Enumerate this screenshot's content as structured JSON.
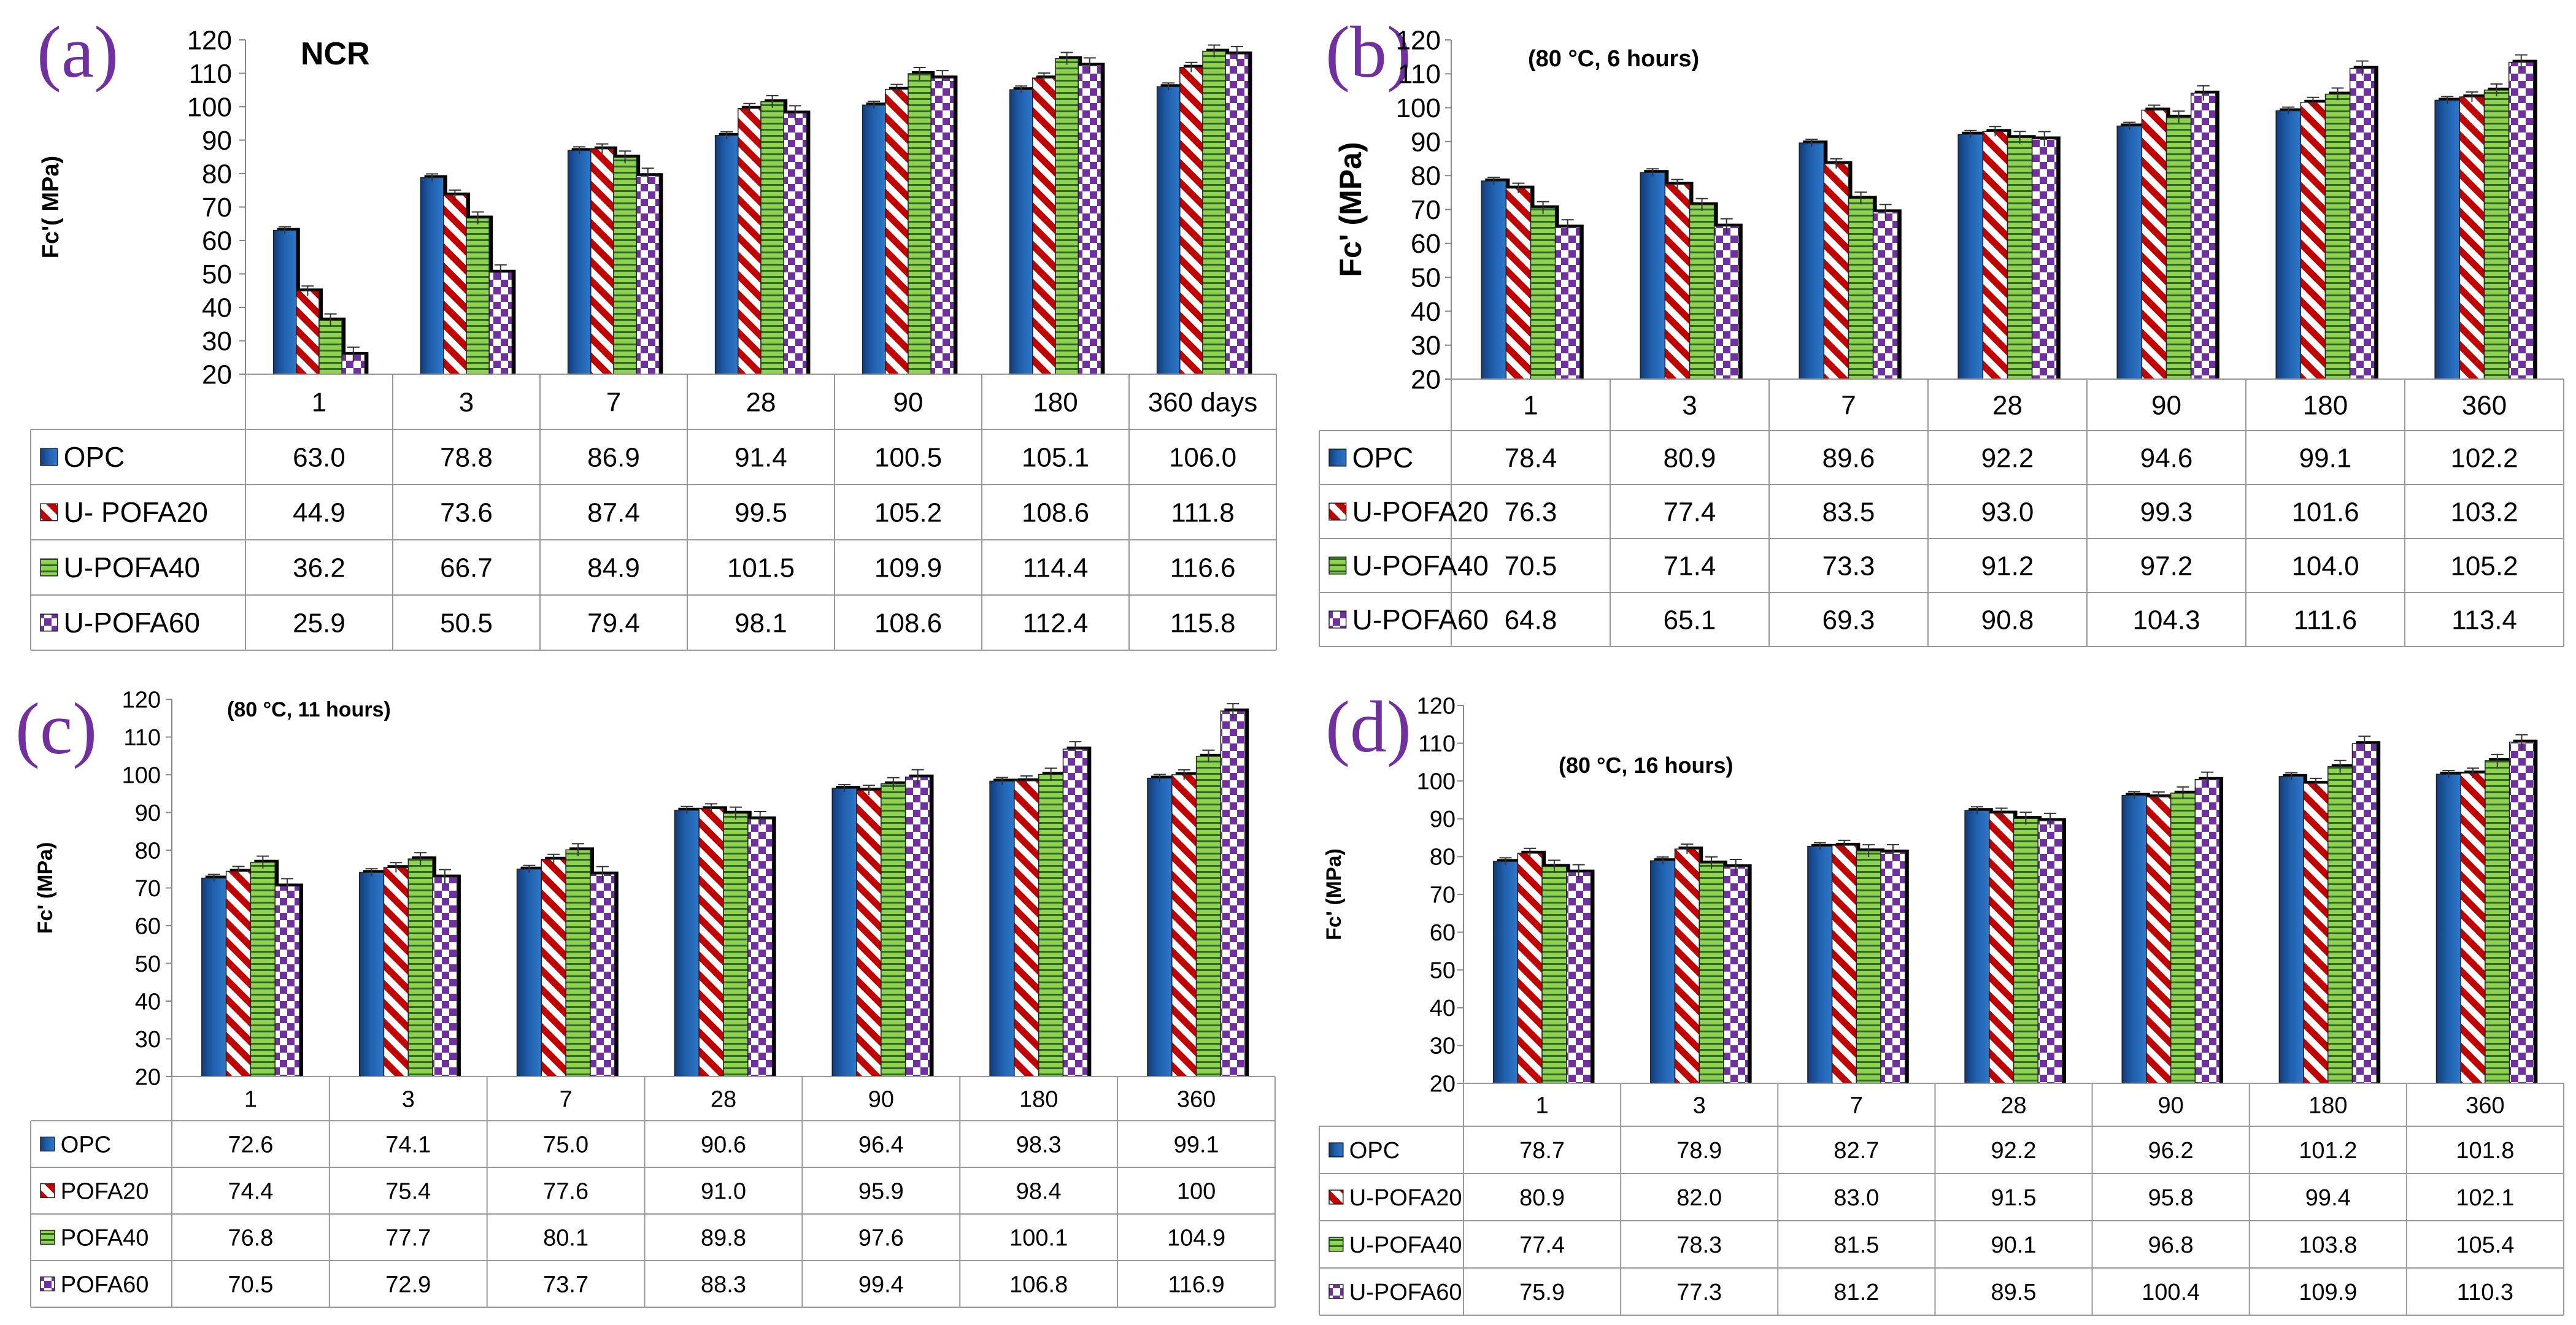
{
  "colors": {
    "OPC": "#1f5fad",
    "POFA20_stripe": "#c00000",
    "POFA40_fill": "#92d050",
    "POFA60_check": "#7030a0",
    "label": "#7030a0"
  },
  "chart_data": [
    {
      "type": "bar",
      "panel_label": "(a)",
      "title": "NCR",
      "ylabel": "Fc'( MPa)",
      "ylim": [
        20,
        120
      ],
      "yticks": [
        "20",
        "30",
        "40",
        "50",
        "60",
        "70",
        "80",
        "90",
        "100",
        "110",
        "120"
      ],
      "categories": [
        "1",
        "3",
        "7",
        "28",
        "90",
        "180",
        "360 days"
      ],
      "series": [
        {
          "name": "OPC",
          "values": [
            63.0,
            78.8,
            86.9,
            91.4,
            100.5,
            105.1,
            106.0
          ],
          "display": [
            "63.0",
            "78.8",
            "86.9",
            "91.4",
            "100.5",
            "105.1",
            "106.0"
          ]
        },
        {
          "name": "U- POFA20",
          "values": [
            44.9,
            73.6,
            87.4,
            99.5,
            105.2,
            108.6,
            111.8
          ],
          "display": [
            "44.9",
            "73.6",
            "87.4",
            "99.5",
            "105.2",
            "108.6",
            "111.8"
          ]
        },
        {
          "name": "U-POFA40",
          "values": [
            36.2,
            66.7,
            84.9,
            101.5,
            109.9,
            114.4,
            116.6
          ],
          "display": [
            "36.2",
            "66.7",
            "84.9",
            "101.5",
            "109.9",
            "114.4",
            "116.6"
          ]
        },
        {
          "name": "U-POFA60",
          "values": [
            25.9,
            50.5,
            79.4,
            98.1,
            108.6,
            112.4,
            115.8
          ],
          "display": [
            "25.9",
            "50.5",
            "79.4",
            "98.1",
            "108.6",
            "112.4",
            "115.8"
          ]
        }
      ]
    },
    {
      "type": "bar",
      "panel_label": "(b)",
      "title": "(80 °C, 6 hours)",
      "ylabel": "Fc' (MPa)",
      "ylim": [
        20,
        120
      ],
      "yticks": [
        "20",
        "30",
        "40",
        "50",
        "60",
        "70",
        "80",
        "90",
        "100",
        "110",
        "120"
      ],
      "categories": [
        "1",
        "3",
        "7",
        "28",
        "90",
        "180",
        "360"
      ],
      "series": [
        {
          "name": "OPC",
          "values": [
            78.4,
            80.9,
            89.6,
            92.2,
            94.6,
            99.1,
            102.2
          ],
          "display": [
            "78.4",
            "80.9",
            "89.6",
            "92.2",
            "94.6",
            "99.1",
            "102.2"
          ]
        },
        {
          "name": "U-POFA20",
          "values": [
            76.3,
            77.4,
            83.5,
            93.0,
            99.3,
            101.6,
            103.2
          ],
          "display": [
            "76.3",
            "77.4",
            "83.5",
            "93.0",
            "99.3",
            "101.6",
            "103.2"
          ]
        },
        {
          "name": "U-POFA40",
          "values": [
            70.5,
            71.4,
            73.3,
            91.2,
            97.2,
            104.0,
            105.2
          ],
          "display": [
            "70.5",
            "71.4",
            "73.3",
            "91.2",
            "97.2",
            "104.0",
            "105.2"
          ]
        },
        {
          "name": "U-POFA60",
          "values": [
            64.8,
            65.1,
            69.3,
            90.8,
            104.3,
            111.6,
            113.4
          ],
          "display": [
            "64.8",
            "65.1",
            "69.3",
            "90.8",
            "104.3",
            "111.6",
            "113.4"
          ]
        }
      ]
    },
    {
      "type": "bar",
      "panel_label": "(c)",
      "title": "(80 °C, 11 hours)",
      "ylabel": "Fc' (MPa)",
      "ylim": [
        20,
        120
      ],
      "yticks": [
        "20",
        "30",
        "40",
        "50",
        "60",
        "70",
        "80",
        "90",
        "100",
        "110",
        "120"
      ],
      "categories": [
        "1",
        "3",
        "7",
        "28",
        "90",
        "180",
        "360"
      ],
      "series": [
        {
          "name": "OPC",
          "values": [
            72.6,
            74.1,
            75.0,
            90.6,
            96.4,
            98.3,
            99.1
          ],
          "display": [
            "72.6",
            "74.1",
            "75.0",
            "90.6",
            "96.4",
            "98.3",
            "99.1"
          ]
        },
        {
          "name": "POFA20",
          "values": [
            74.4,
            75.4,
            77.6,
            91.0,
            95.9,
            98.4,
            100
          ],
          "display": [
            "74.4",
            "75.4",
            "77.6",
            "91.0",
            "95.9",
            "98.4",
            "100"
          ]
        },
        {
          "name": "POFA40",
          "values": [
            76.8,
            77.7,
            80.1,
            89.8,
            97.6,
            100.1,
            104.9
          ],
          "display": [
            "76.8",
            "77.7",
            "80.1",
            "89.8",
            "97.6",
            "100.1",
            "104.9"
          ]
        },
        {
          "name": "POFA60",
          "values": [
            70.5,
            72.9,
            73.7,
            88.3,
            99.4,
            106.8,
            116.9
          ],
          "display": [
            "70.5",
            "72.9",
            "73.7",
            "88.3",
            "99.4",
            "106.8",
            "116.9"
          ]
        }
      ]
    },
    {
      "type": "bar",
      "panel_label": "(d)",
      "title": "(80 °C, 16 hours)",
      "ylabel": "Fc' (MPa)",
      "ylim": [
        20,
        120
      ],
      "yticks": [
        "20",
        "30",
        "40",
        "50",
        "60",
        "70",
        "80",
        "90",
        "100",
        "110",
        "120"
      ],
      "categories": [
        "1",
        "3",
        "7",
        "28",
        "90",
        "180",
        "360"
      ],
      "series": [
        {
          "name": "OPC",
          "values": [
            78.7,
            78.9,
            82.7,
            92.2,
            96.2,
            101.2,
            101.8
          ],
          "display": [
            "78.7",
            "78.9",
            "82.7",
            "92.2",
            "96.2",
            "101.2",
            "101.8"
          ]
        },
        {
          "name": "U-POFA20",
          "values": [
            80.9,
            82.0,
            83.0,
            91.5,
            95.8,
            99.4,
            102.1
          ],
          "display": [
            "80.9",
            "82.0",
            "83.0",
            "91.5",
            "95.8",
            "99.4",
            "102.1"
          ]
        },
        {
          "name": "U-POFA40",
          "values": [
            77.4,
            78.3,
            81.5,
            90.1,
            96.8,
            103.8,
            105.4
          ],
          "display": [
            "77.4",
            "78.3",
            "81.5",
            "90.1",
            "96.8",
            "103.8",
            "105.4"
          ]
        },
        {
          "name": "U-POFA60",
          "values": [
            75.9,
            77.3,
            81.2,
            89.5,
            100.4,
            109.9,
            110.3
          ],
          "display": [
            "75.9",
            "77.3",
            "81.2",
            "89.5",
            "100.4",
            "109.9",
            "110.3"
          ]
        }
      ]
    }
  ]
}
